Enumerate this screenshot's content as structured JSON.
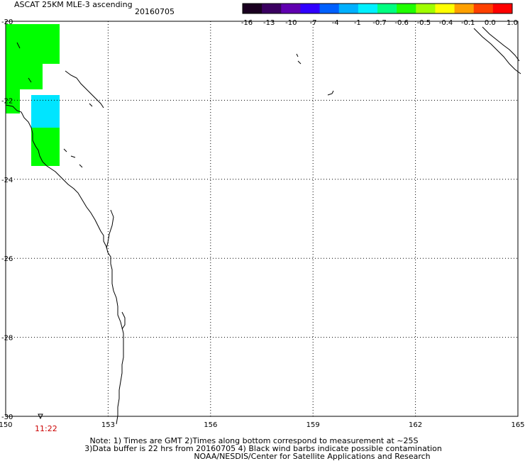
{
  "header": {
    "title": "ASCAT 25KM MLE-3 ascending",
    "date": "20160705"
  },
  "colorbar": {
    "tick_labels": [
      "-16",
      "-13",
      "-10",
      "-7",
      "-4",
      "-1",
      "-0.7",
      "-0.6",
      "-0.5",
      "-0.4",
      "-0.1",
      "0.0",
      "1.0"
    ],
    "colors": [
      "#1a0020",
      "#3a0060",
      "#6000b0",
      "#3000ff",
      "#0060ff",
      "#00b0ff",
      "#00f0ff",
      "#00ff80",
      "#20ff00",
      "#a0ff00",
      "#ffff00",
      "#ffa000",
      "#ff4000",
      "#ff0000"
    ]
  },
  "map": {
    "lon_labels": [
      "150",
      "153",
      "156",
      "159",
      "162",
      "165"
    ],
    "lat_labels": [
      "-20",
      "-22",
      "-24",
      "-26",
      "-28",
      "-30"
    ],
    "lon_values": [
      150,
      153,
      156,
      159,
      162,
      165
    ],
    "lat_values": [
      -20,
      -22,
      -24,
      -26,
      -28,
      -30
    ],
    "swath_colors": {
      "green": "#00ff00",
      "cyan": "#00e5ff"
    },
    "time_label": "11:22"
  },
  "notes": [
    "Note: 1) Times are GMT 2)Times along bottom correspond to measurement at ~25S",
    "3)Data buffer is 22 hrs from 20160705 4) Black wind barbs indicate possible contamination",
    "NOAA/NESDIS/Center for Satellite Applications and Research"
  ]
}
